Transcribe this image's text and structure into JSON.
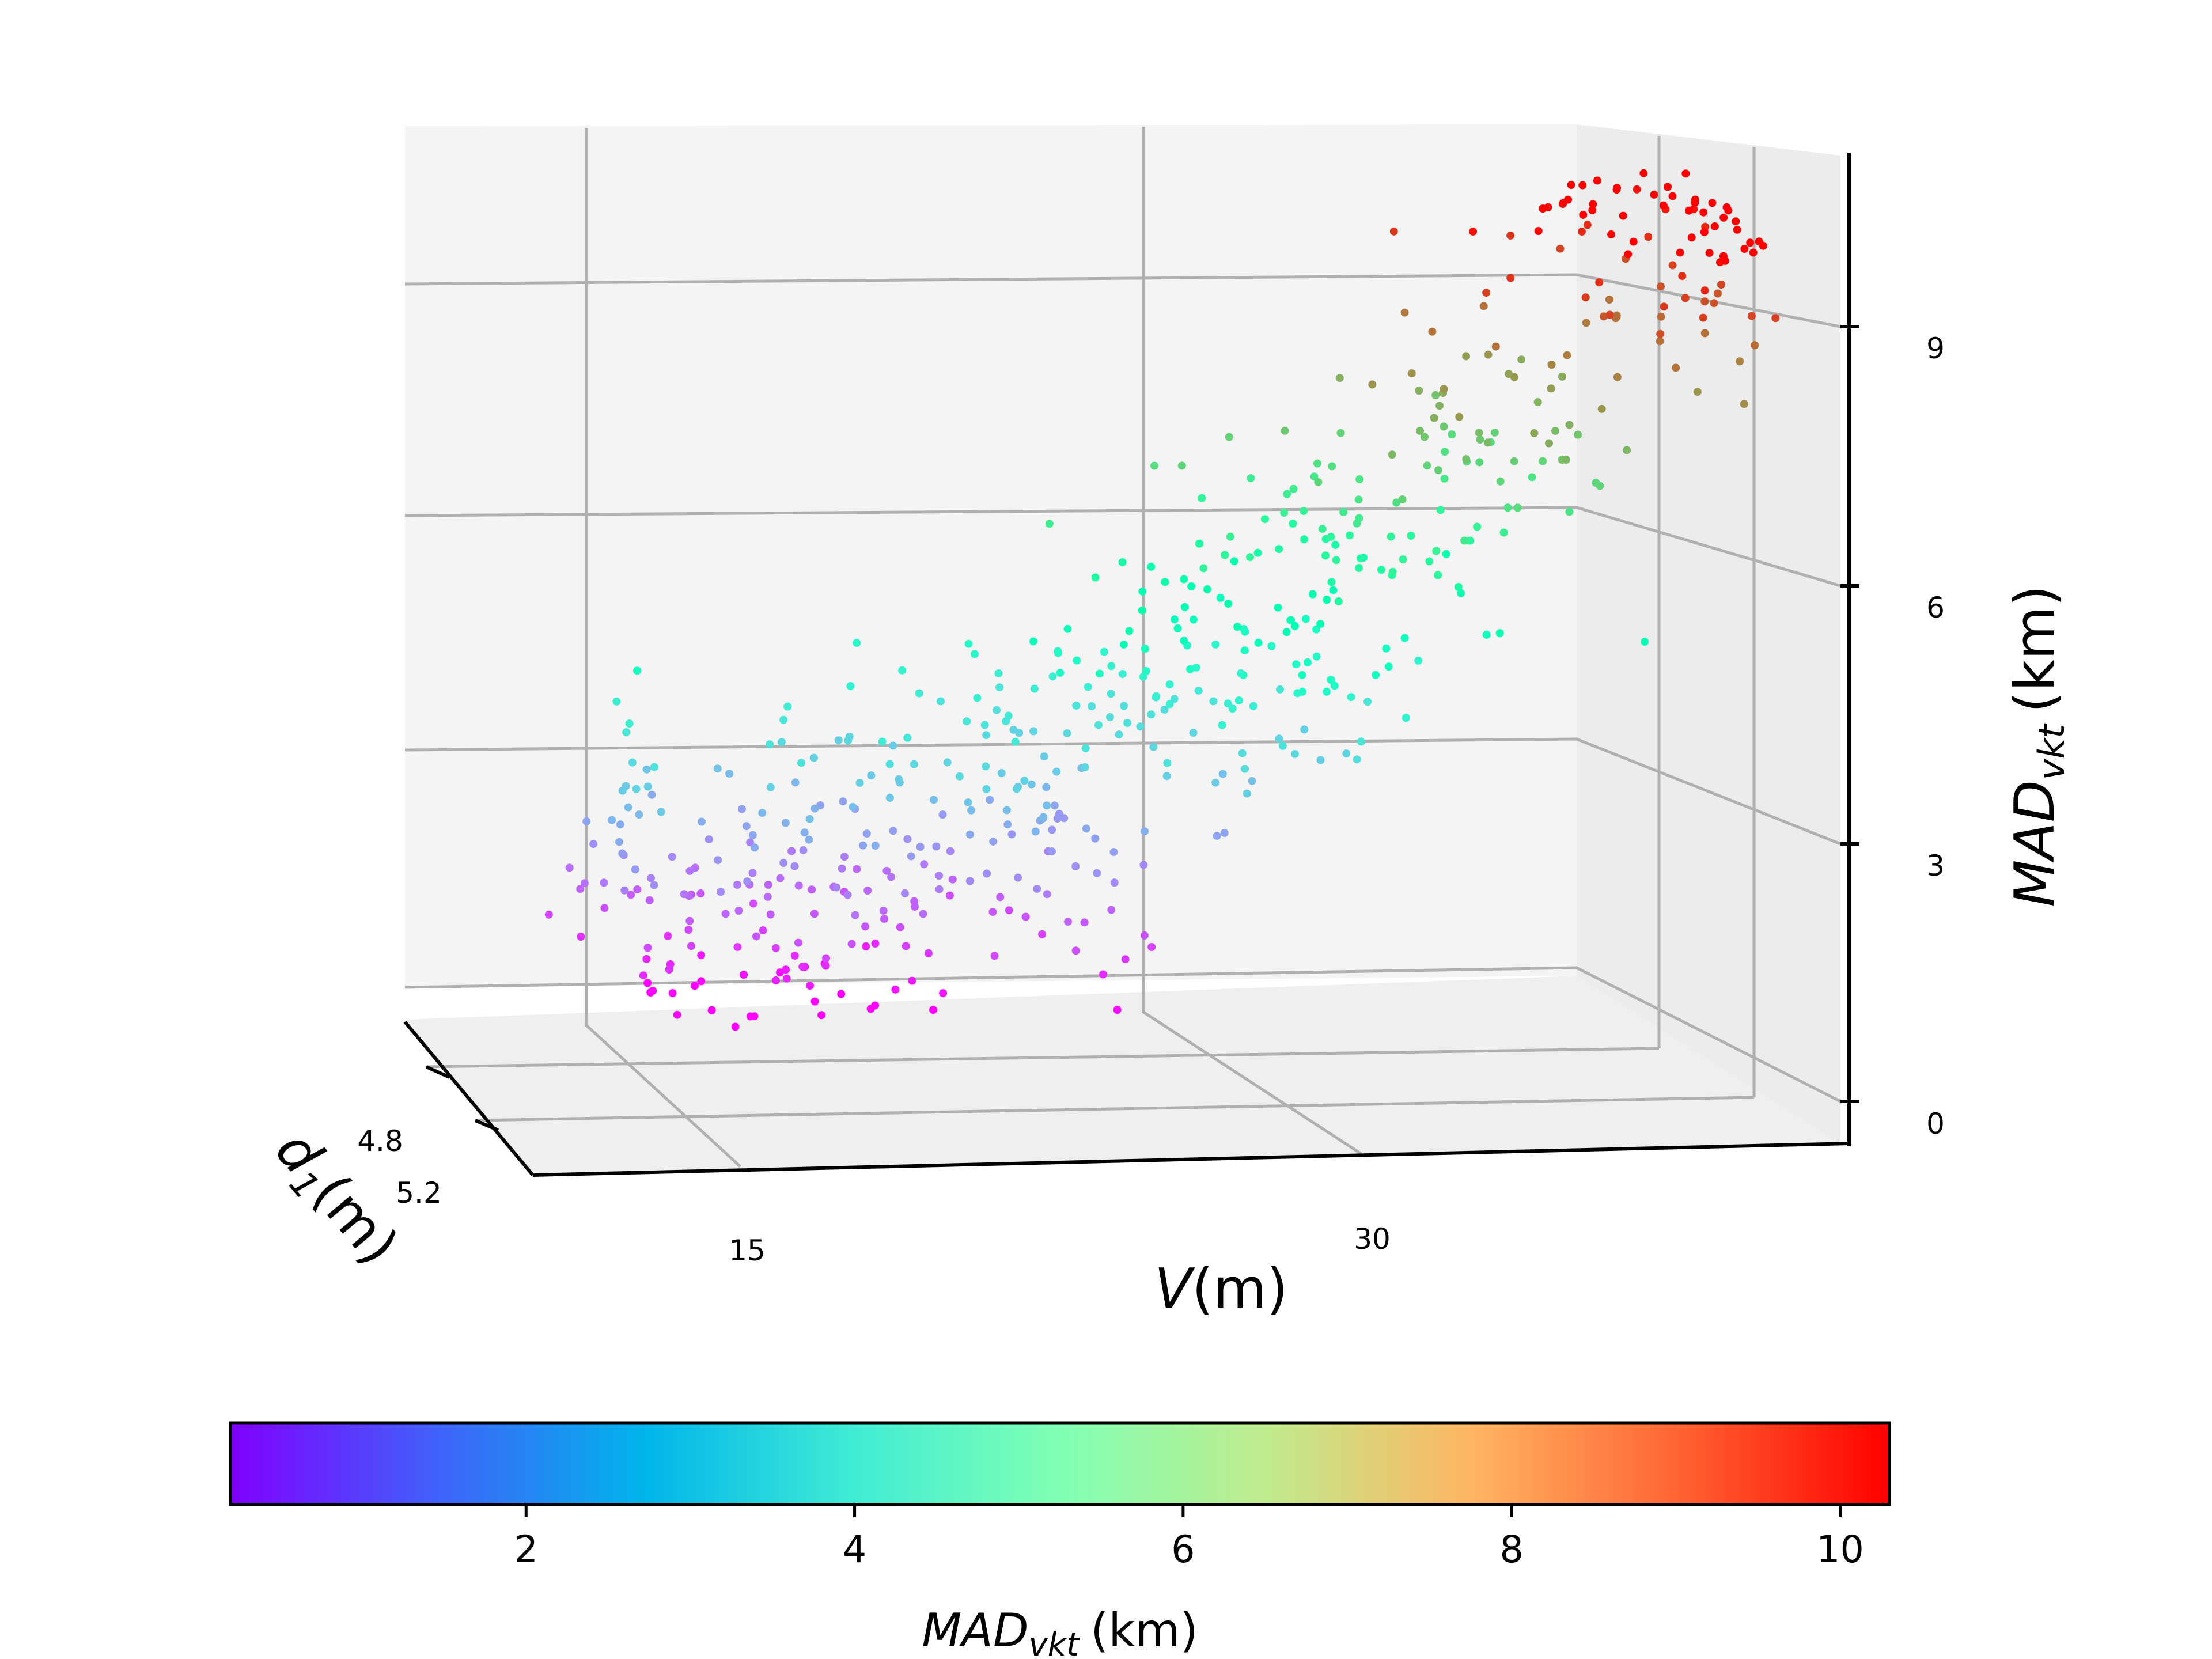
{
  "chart_data": {
    "type": "scatter",
    "projection": "3d",
    "axes": {
      "x": {
        "label_main": "V",
        "label_unit": "(m)",
        "ticks": [
          "15",
          "30"
        ],
        "lim": [
          8.5,
          38.5
        ]
      },
      "y": {
        "label_main": "d",
        "label_sub": "1",
        "label_unit": "(m)",
        "ticks": [
          "4.8",
          "5.2"
        ]
      },
      "z": {
        "label_main": "MAD",
        "label_sub": "vkt",
        "label_unit": "(km)",
        "ticks": [
          "0",
          "3",
          "6",
          "9"
        ],
        "lim": [
          -0.6,
          10.8
        ]
      }
    },
    "grid": true,
    "colormap": "rainbow",
    "colorbar": {
      "orientation": "horizontal",
      "label_main": "MAD",
      "label_sub": "vkt",
      "label_unit": "(km)",
      "range": [
        0.2,
        10.3
      ],
      "ticks": [
        "2",
        "4",
        "6",
        "8",
        "10"
      ]
    },
    "point_count": 610,
    "value_range": {
      "V": [
        8.5,
        38.5
      ],
      "d1": [
        4.6,
        5.4
      ],
      "MAD_vkt": [
        0.2,
        10.3
      ]
    }
  }
}
